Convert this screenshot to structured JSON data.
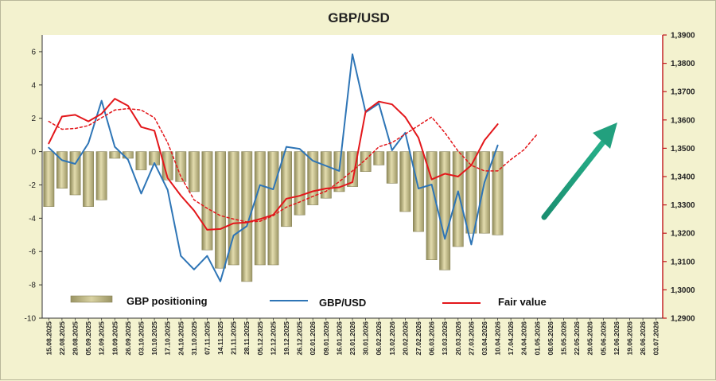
{
  "chart_data": {
    "type": "bar+line",
    "title": "GBP/USD",
    "xlabel": "",
    "ylabel": "",
    "grid": false,
    "legend_placement": "bottom-inside",
    "left_axis": {
      "min": -10,
      "max": 7,
      "ticks": [
        -10,
        -8,
        -6,
        -4,
        -2,
        0,
        2,
        4,
        6
      ]
    },
    "right_axis": {
      "min": 1.29,
      "max": 1.39,
      "ticks": [
        1.29,
        1.3,
        1.31,
        1.32,
        1.33,
        1.34,
        1.35,
        1.36,
        1.37,
        1.38,
        1.39
      ],
      "tick_labels": [
        "1,2900",
        "1,3000",
        "1,3100",
        "1,3200",
        "1,3300",
        "1,3400",
        "1,3500",
        "1,3600",
        "1,3700",
        "1,3800",
        "1,3900"
      ]
    },
    "date_labels": [
      "15.08.2025",
      "22.08.2025",
      "29.08.2025",
      "05.09.2025",
      "12.09.2025",
      "19.09.2025",
      "26.09.2025",
      "03.10.2025",
      "10.10.2025",
      "17.10.2025",
      "24.10.2025",
      "31.10.2025",
      "07.11.2025",
      "14.11.2025",
      "21.11.2025",
      "28.11.2025",
      "05.12.2025",
      "12.12.2025",
      "19.12.2025",
      "26.12.2025",
      "02.01.2026",
      "09.01.2026",
      "16.01.2026",
      "23.01.2026",
      "30.01.2026",
      "06.02.2026",
      "13.02.2026",
      "20.02.2026",
      "27.02.2026",
      "06.03.2026",
      "13.03.2026",
      "20.03.2026",
      "27.03.2026",
      "03.04.2026",
      "10.04.2026",
      "17.04.2026",
      "24.04.2026",
      "01.05.2026",
      "08.05.2026",
      "15.05.2026",
      "22.05.2026",
      "29.05.2026",
      "05.06.2026",
      "12.06.2026",
      "19.06.2026",
      "26.06.2026",
      "03.07.2026"
    ],
    "series": [
      {
        "name": "GBP positioning",
        "type": "bar",
        "axis": "left",
        "color": "#b9b07c",
        "values": [
          -3.3,
          -2.2,
          -2.6,
          -3.3,
          -2.9,
          -0.4,
          -0.4,
          -1.1,
          -0.8,
          -1.7,
          -1.8,
          -2.4,
          -5.9,
          -7.0,
          -6.8,
          -7.8,
          -6.8,
          -6.8,
          -4.5,
          -3.8,
          -3.2,
          -2.8,
          -2.4,
          -2.1,
          -1.2,
          -0.8,
          -1.9,
          -3.6,
          -4.8,
          -6.5,
          -7.1,
          -5.7,
          -4.9,
          -4.9,
          -5.0
        ]
      },
      {
        "name": "GBP/USD",
        "type": "line",
        "axis": "right",
        "color": "#2e75b6",
        "values": [
          1.3502,
          1.3458,
          1.3445,
          1.3518,
          1.3668,
          1.3505,
          1.346,
          1.334,
          1.3448,
          1.3353,
          1.312,
          1.3072,
          1.312,
          1.303,
          1.3192,
          1.3225,
          1.337,
          1.3355,
          1.3505,
          1.3498,
          1.3456,
          1.3438,
          1.342,
          1.3832,
          1.3627,
          1.3658,
          1.3493,
          1.3555,
          1.3358,
          1.3372,
          1.318,
          1.3348,
          1.316,
          1.338,
          1.351
        ]
      },
      {
        "name": "Fair value",
        "type": "line",
        "axis": "right",
        "color": "#e3171b",
        "values": [
          1.3517,
          1.3612,
          1.3618,
          1.3595,
          1.3622,
          1.3675,
          1.365,
          1.3575,
          1.3562,
          1.3395,
          1.3333,
          1.328,
          1.3212,
          1.3215,
          1.3235,
          1.3238,
          1.325,
          1.3265,
          1.3322,
          1.3332,
          1.3348,
          1.3358,
          1.3362,
          1.338,
          1.363,
          1.3665,
          1.3655,
          1.361,
          1.3537,
          1.339,
          1.341,
          1.34,
          1.344,
          1.3528,
          1.3585
        ]
      },
      {
        "name": "Fair value (dashed)",
        "type": "line",
        "axis": "right",
        "color": "#e3171b",
        "dashed": true,
        "values": [
          1.3595,
          1.3567,
          1.357,
          1.358,
          1.3608,
          1.3635,
          1.364,
          1.3635,
          1.3608,
          1.352,
          1.34,
          1.3318,
          1.3288,
          1.3262,
          1.325,
          1.324,
          1.3242,
          1.3262,
          1.3292,
          1.331,
          1.333,
          1.3348,
          1.3382,
          1.342,
          1.346,
          1.3505,
          1.352,
          1.355,
          1.358,
          1.361,
          1.3555,
          1.349,
          1.344,
          1.342,
          1.342,
          1.346,
          1.3495,
          1.355
        ]
      }
    ],
    "legend": [
      "GBP positioning",
      "GBP/USD",
      "Fair value"
    ]
  }
}
